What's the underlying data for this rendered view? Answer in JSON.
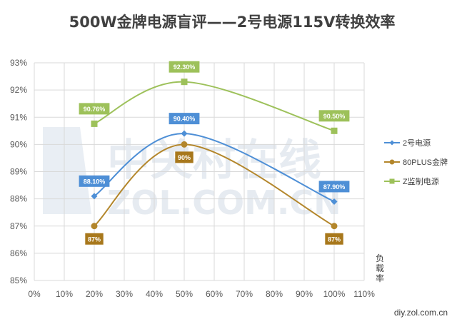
{
  "chart_data": {
    "type": "line",
    "title": "500W金牌电源盲评——2号电源115V转换效率",
    "xlabel": "负载率",
    "ylabel": "",
    "x_ticks": [
      "0%",
      "10%",
      "20%",
      "30%",
      "40%",
      "50%",
      "60%",
      "70%",
      "80%",
      "90%",
      "100%",
      "110%"
    ],
    "y_ticks": [
      "85%",
      "86%",
      "87%",
      "88%",
      "89%",
      "90%",
      "91%",
      "92%",
      "93%"
    ],
    "xlim": [
      0,
      110
    ],
    "ylim": [
      85,
      93
    ],
    "grid": true,
    "legend_position": "right",
    "series": [
      {
        "name": "2号电源",
        "x": [
          20,
          50,
          100
        ],
        "values": [
          88.1,
          90.4,
          87.9
        ],
        "labels": [
          "88.10%",
          "90.40%",
          "87.90%"
        ],
        "color": "#4e8fd6",
        "label_bg": "#4e8fd6",
        "label_color": "#ffffff",
        "marker": "diamond"
      },
      {
        "name": "80PLUS金牌",
        "x": [
          20,
          50,
          100
        ],
        "values": [
          87,
          90,
          87
        ],
        "labels": [
          "87%",
          "90%",
          "87%"
        ],
        "color": "#b3862b",
        "label_bg": "#a8781c",
        "label_color": "#ffffff",
        "marker": "circle"
      },
      {
        "name": "Z监制电源",
        "x": [
          20,
          50,
          100
        ],
        "values": [
          90.76,
          92.3,
          90.5
        ],
        "labels": [
          "90.76%",
          "92.30%",
          "90.50%"
        ],
        "color": "#9dc15a",
        "label_bg": "#9dc15a",
        "label_color": "#ffffff",
        "marker": "square"
      }
    ]
  },
  "watermark": {
    "cn": "中关村在线",
    "en": "ZOL.COM.CN"
  },
  "credit": "diy.zol.com.cn"
}
